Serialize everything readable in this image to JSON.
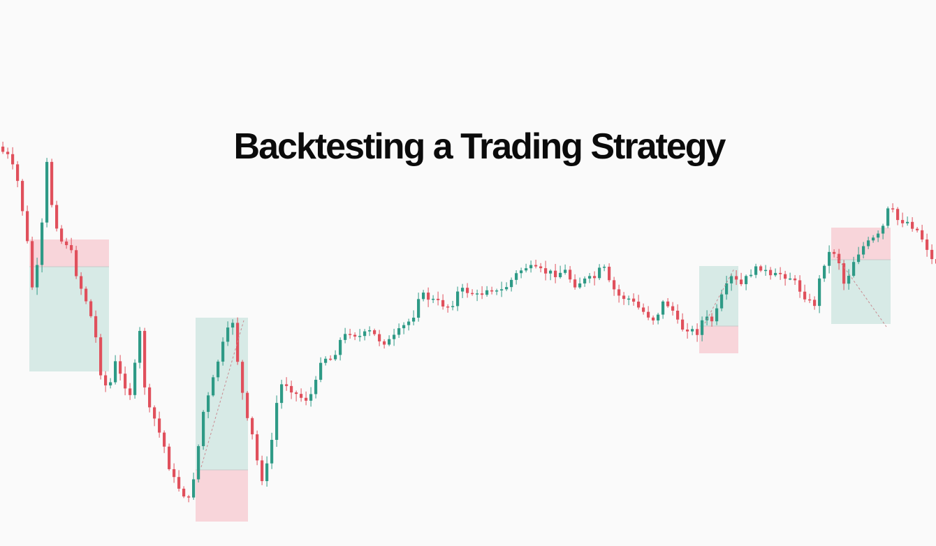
{
  "title": "Backtesting a Trading Strategy",
  "colors": {
    "background": "#fafafa",
    "bull": "#2e9a86",
    "bear": "#e0505c",
    "profit_zone": "#b9ddd5",
    "loss_zone": "#f7c5cc",
    "title": "#0b0b0b"
  },
  "chart_data": {
    "type": "candlestick",
    "title": "Backtesting a Trading Strategy",
    "xlabel": "",
    "ylabel": "",
    "grid": false,
    "legend": "none",
    "axes_visible": false,
    "price_path": [
      [
        0,
        210
      ],
      [
        18,
        225
      ],
      [
        30,
        260
      ],
      [
        42,
        330
      ],
      [
        52,
        420
      ],
      [
        62,
        360
      ],
      [
        72,
        235
      ],
      [
        80,
        300
      ],
      [
        92,
        345
      ],
      [
        104,
        350
      ],
      [
        116,
        400
      ],
      [
        128,
        430
      ],
      [
        140,
        470
      ],
      [
        150,
        540
      ],
      [
        160,
        560
      ],
      [
        170,
        520
      ],
      [
        180,
        545
      ],
      [
        192,
        565
      ],
      [
        206,
        470
      ],
      [
        214,
        580
      ],
      [
        226,
        600
      ],
      [
        240,
        640
      ],
      [
        250,
        680
      ],
      [
        262,
        700
      ],
      [
        276,
        718
      ],
      [
        286,
        660
      ],
      [
        296,
        590
      ],
      [
        306,
        560
      ],
      [
        316,
        520
      ],
      [
        328,
        480
      ],
      [
        338,
        460
      ],
      [
        348,
        540
      ],
      [
        358,
        600
      ],
      [
        368,
        630
      ],
      [
        378,
        690
      ],
      [
        390,
        660
      ],
      [
        402,
        570
      ],
      [
        410,
        545
      ],
      [
        420,
        555
      ],
      [
        432,
        568
      ],
      [
        445,
        572
      ],
      [
        455,
        558
      ],
      [
        465,
        510
      ],
      [
        480,
        515
      ],
      [
        492,
        488
      ],
      [
        505,
        475
      ],
      [
        520,
        482
      ],
      [
        535,
        475
      ],
      [
        552,
        490
      ],
      [
        565,
        488
      ],
      [
        580,
        470
      ],
      [
        596,
        455
      ],
      [
        605,
        420
      ],
      [
        620,
        428
      ],
      [
        636,
        435
      ],
      [
        650,
        440
      ],
      [
        662,
        415
      ],
      [
        678,
        418
      ],
      [
        690,
        425
      ],
      [
        704,
        410
      ],
      [
        718,
        420
      ],
      [
        730,
        410
      ],
      [
        742,
        395
      ],
      [
        756,
        382
      ],
      [
        770,
        386
      ],
      [
        786,
        390
      ],
      [
        800,
        392
      ],
      [
        815,
        388
      ],
      [
        826,
        408
      ],
      [
        840,
        402
      ],
      [
        856,
        398
      ],
      [
        868,
        380
      ],
      [
        878,
        408
      ],
      [
        892,
        425
      ],
      [
        905,
        428
      ],
      [
        918,
        440
      ],
      [
        930,
        450
      ],
      [
        942,
        458
      ],
      [
        955,
        432
      ],
      [
        966,
        440
      ],
      [
        978,
        470
      ],
      [
        990,
        470
      ],
      [
        1002,
        478
      ],
      [
        1012,
        455
      ],
      [
        1026,
        460
      ],
      [
        1040,
        420
      ],
      [
        1052,
        398
      ],
      [
        1066,
        408
      ],
      [
        1080,
        390
      ],
      [
        1095,
        382
      ],
      [
        1108,
        398
      ],
      [
        1122,
        392
      ],
      [
        1138,
        398
      ],
      [
        1152,
        418
      ],
      [
        1170,
        440
      ],
      [
        1182,
        382
      ],
      [
        1196,
        355
      ],
      [
        1206,
        375
      ],
      [
        1214,
        410
      ],
      [
        1226,
        375
      ],
      [
        1238,
        355
      ],
      [
        1252,
        345
      ],
      [
        1266,
        335
      ],
      [
        1278,
        295
      ],
      [
        1290,
        315
      ],
      [
        1305,
        318
      ],
      [
        1318,
        330
      ],
      [
        1330,
        350
      ],
      [
        1340,
        375
      ]
    ],
    "trades": [
      {
        "entry": [
          42,
          382
        ],
        "stop_loss": [
          42,
          343
        ],
        "take_profit": [
          156,
          532
        ]
      },
      {
        "entry": [
          280,
          673
        ],
        "stop_loss": [
          280,
          747
        ],
        "take_profit": [
          355,
          455
        ],
        "dashed_line": true
      },
      {
        "entry": [
          1001,
          467
        ],
        "stop_loss": [
          1001,
          506
        ],
        "take_profit": [
          1057,
          381
        ],
        "dashed_line": true
      },
      {
        "entry": [
          1190,
          372
        ],
        "stop_loss": [
          1190,
          326
        ],
        "take_profit": [
          1275,
          464
        ],
        "dashed_line": true
      }
    ]
  }
}
